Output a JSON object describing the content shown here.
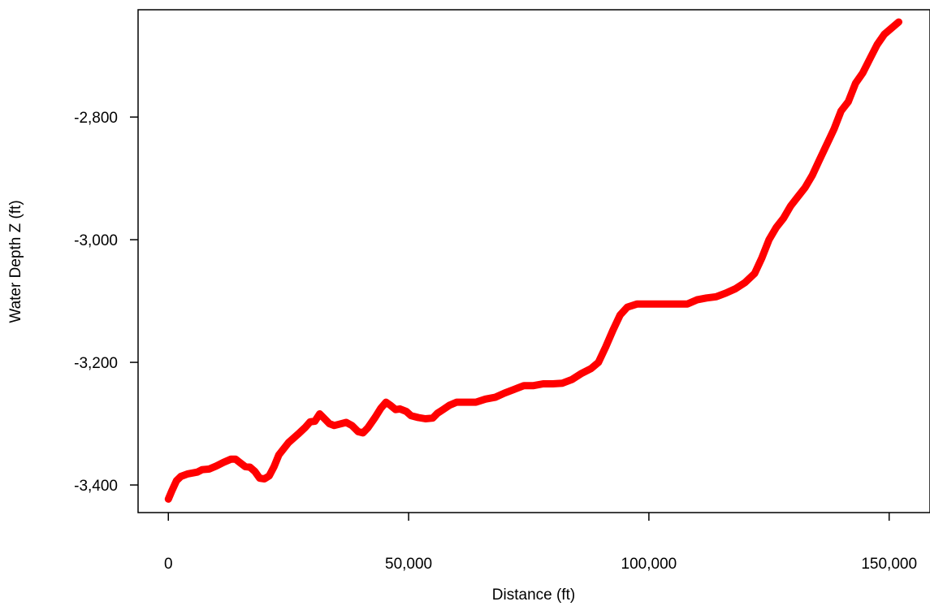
{
  "chart_data": {
    "type": "line",
    "xlabel": "Distance (ft)",
    "ylabel": "Water Depth Z (ft)",
    "xlim": [
      -6300,
      158500
    ],
    "ylim": [
      -3445,
      -2625
    ],
    "x_ticks": [
      0,
      50000,
      100000,
      150000
    ],
    "x_tick_labels": [
      "0",
      "50,000",
      "100,000",
      "150,000"
    ],
    "y_ticks": [
      -3400,
      -3200,
      -3000,
      -2800
    ],
    "y_tick_labels": [
      "-3,400",
      "-3,200",
      "-3,000",
      "-2,800"
    ],
    "grid": false,
    "legend": "none",
    "series": [
      {
        "color": "#ff0000",
        "x": [
          0,
          700,
          1700,
          2600,
          4000,
          6000,
          7000,
          8500,
          10000,
          11500,
          13000,
          14000,
          15000,
          16000,
          17000,
          18000,
          19000,
          20000,
          21000,
          22000,
          23000,
          25000,
          27000,
          28500,
          29500,
          30500,
          31500,
          32500,
          33500,
          34500,
          35500,
          37000,
          38200,
          39500,
          40500,
          41500,
          43000,
          44200,
          45300,
          46200,
          47300,
          48200,
          49500,
          50500,
          52000,
          53500,
          55000,
          56000,
          57000,
          58500,
          60000,
          62000,
          64000,
          66000,
          68000,
          70000,
          72000,
          74000,
          76000,
          78000,
          80000,
          82000,
          84000,
          86000,
          88000,
          89500,
          91000,
          92500,
          94000,
          95500,
          97500,
          100000,
          102000,
          104000,
          106000,
          108000,
          110000,
          112000,
          114000,
          116000,
          118000,
          120000,
          122000,
          123500,
          125000,
          126500,
          128000,
          129500,
          131000,
          132500,
          134000,
          135500,
          137000,
          138500,
          140000,
          141500,
          143000,
          144500,
          146000,
          147500,
          149000,
          150500,
          152000
        ],
        "y": [
          -3423,
          -3410,
          -3393,
          -3386,
          -3382,
          -3379,
          -3375,
          -3374,
          -3369,
          -3363,
          -3358,
          -3358,
          -3364,
          -3370,
          -3371,
          -3378,
          -3389,
          -3390,
          -3385,
          -3370,
          -3351,
          -3331,
          -3317,
          -3306,
          -3297,
          -3296,
          -3284,
          -3292,
          -3300,
          -3303,
          -3301,
          -3298,
          -3303,
          -3313,
          -3315,
          -3307,
          -3290,
          -3275,
          -3265,
          -3270,
          -3277,
          -3276,
          -3280,
          -3287,
          -3290,
          -3292,
          -3291,
          -3283,
          -3278,
          -3270,
          -3265,
          -3265,
          -3265,
          -3260,
          -3257,
          -3250,
          -3244,
          -3238,
          -3238,
          -3235,
          -3235,
          -3234,
          -3228,
          -3218,
          -3210,
          -3200,
          -3175,
          -3148,
          -3123,
          -3110,
          -3105,
          -3105,
          -3105,
          -3105,
          -3105,
          -3105,
          -3098,
          -3095,
          -3093,
          -3087,
          -3080,
          -3070,
          -3055,
          -3030,
          -3000,
          -2980,
          -2965,
          -2945,
          -2930,
          -2915,
          -2895,
          -2870,
          -2845,
          -2820,
          -2790,
          -2775,
          -2745,
          -2728,
          -2705,
          -2682,
          -2665,
          -2655,
          -2645
        ]
      }
    ]
  }
}
